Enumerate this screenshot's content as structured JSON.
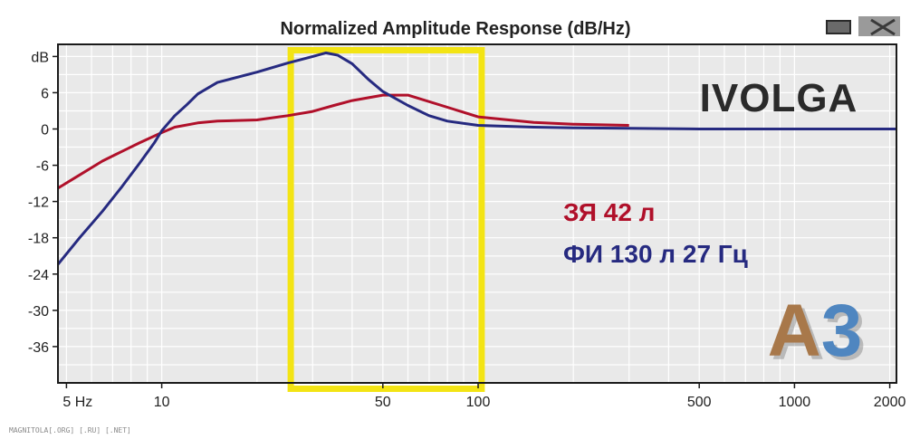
{
  "chart_data": {
    "type": "line",
    "title": "Normalized Amplitude Response (dB/Hz)",
    "ylabel": "dB",
    "xscale": "log",
    "xlim": [
      4.7,
      2100
    ],
    "ylim": [
      -42,
      14
    ],
    "grid": true,
    "x_tick_labels": [
      {
        "value": 5,
        "label": "5 Hz"
      },
      {
        "value": 10,
        "label": "10"
      },
      {
        "value": 50,
        "label": "50"
      },
      {
        "value": 100,
        "label": "100"
      },
      {
        "value": 500,
        "label": "500"
      },
      {
        "value": 1000,
        "label": "1000"
      },
      {
        "value": 2000,
        "label": "2000"
      }
    ],
    "y_tick_labels": [
      {
        "value": 12,
        "label": "dB"
      },
      {
        "value": 6,
        "label": "6"
      },
      {
        "value": 0,
        "label": "0"
      },
      {
        "value": -6,
        "label": "-6"
      },
      {
        "value": -12,
        "label": "-12"
      },
      {
        "value": -18,
        "label": "-18"
      },
      {
        "value": -24,
        "label": "-24"
      },
      {
        "value": -30,
        "label": "-30"
      },
      {
        "value": -36,
        "label": "-36"
      }
    ],
    "highlight_band": {
      "x_from": 25,
      "x_to": 105,
      "color": "#f3e414"
    },
    "series": [
      {
        "name": "ЗЯ 42 л",
        "color": "#b0102a",
        "x": [
          4.7,
          5.5,
          6.5,
          7.5,
          8.5,
          10,
          11,
          13,
          15,
          20,
          25,
          30,
          35,
          40,
          50,
          60,
          80,
          100,
          150,
          200,
          300
        ],
        "y": [
          -9.8,
          -7.6,
          -5.3,
          -3.7,
          -2.3,
          -0.6,
          0.3,
          1.0,
          1.3,
          1.5,
          2.2,
          2.9,
          3.9,
          4.7,
          5.6,
          5.6,
          3.6,
          2.0,
          1.1,
          0.8,
          0.6
        ]
      },
      {
        "name": "ФИ 130 л 27 Гц",
        "color": "#262a80",
        "x": [
          4.7,
          5.5,
          6.5,
          7.5,
          8.5,
          9.5,
          10,
          11,
          12,
          13,
          15,
          20,
          25,
          30,
          33,
          36,
          40,
          45,
          50,
          60,
          70,
          80,
          100,
          150,
          200,
          300,
          500,
          1000,
          2100
        ],
        "y": [
          -22.4,
          -18.0,
          -13.6,
          -9.5,
          -5.7,
          -2.2,
          -0.3,
          2.2,
          4.0,
          5.8,
          7.7,
          9.4,
          10.9,
          12.0,
          12.6,
          12.2,
          10.8,
          8.2,
          6.2,
          3.9,
          2.2,
          1.3,
          0.6,
          0.3,
          0.2,
          0.1,
          0.0,
          0.0,
          0.0
        ]
      }
    ]
  },
  "brand_label": "IVOLGA",
  "logo_text": "A3",
  "footer_text": "MAGNITOLA[.ORG] [.RU] [.NET]",
  "colors": {
    "plot_background": "#e9e9e9",
    "grid": "#ffffff",
    "frame": "#1a1a1a",
    "highlight": "#f3e414",
    "logo_a": "#a8784a",
    "logo_3": "#4f86c0"
  }
}
